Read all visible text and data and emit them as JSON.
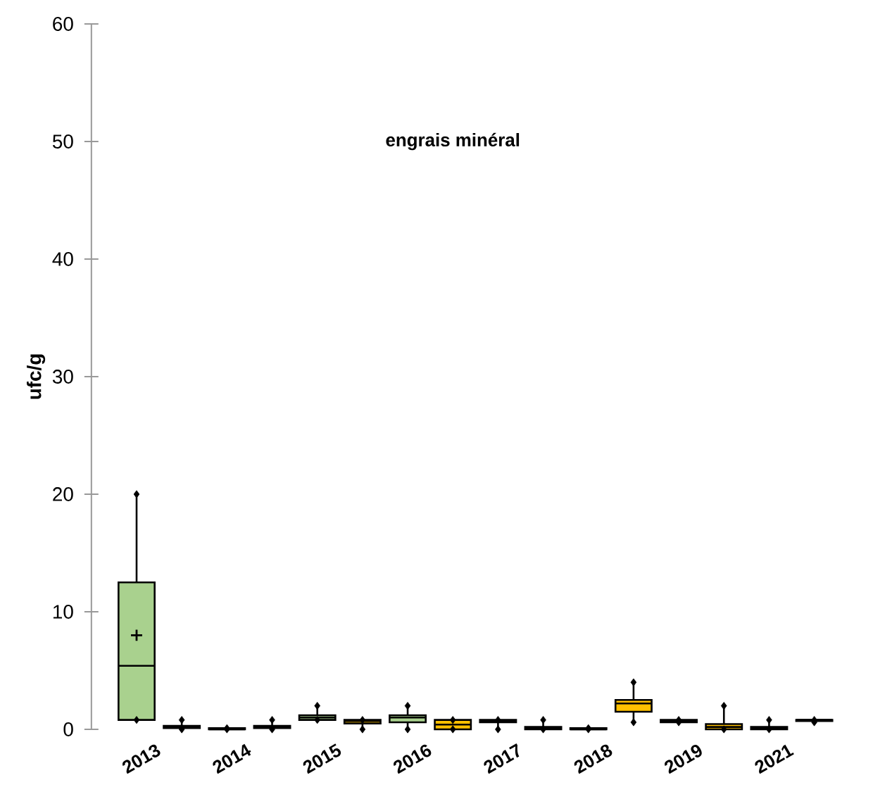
{
  "chart_data": {
    "type": "box",
    "title": "engrais minéral",
    "ylabel": "ufc/g",
    "categories": [
      "2013",
      null,
      "2014",
      null,
      "2015",
      null,
      "2016",
      null,
      "2017",
      null,
      "2018",
      null,
      "2019",
      null,
      "2021",
      null
    ],
    "colors": [
      "#a9d18e",
      "#ffc000",
      "#a9d18e",
      "#ffc000",
      "#a9d18e",
      "#ffc000",
      "#a9d18e",
      "#ffc000",
      "#a9d18e",
      "#ffc000",
      "#a9d18e",
      "#ffc000",
      "#a9d18e",
      "#ffc000",
      "#a9d18e",
      "#ffc000"
    ],
    "boxes": [
      {
        "low": 0.8,
        "q1": 0.8,
        "median": 5.4,
        "q3": 12.5,
        "high": 20,
        "mean": 8,
        "outliers": [
          0.8,
          20
        ]
      },
      {
        "low": 0,
        "q1": 0.1,
        "median": 0.2,
        "q3": 0.3,
        "high": 0.8,
        "outliers": [
          0,
          0.8
        ]
      },
      {
        "low": 0,
        "q1": 0,
        "median": 0,
        "q3": 0.1,
        "high": 0.1,
        "outliers": [
          0,
          0.1
        ]
      },
      {
        "low": 0,
        "q1": 0.1,
        "median": 0.2,
        "q3": 0.3,
        "high": 0.8,
        "outliers": [
          0,
          0.8
        ]
      },
      {
        "low": 0.8,
        "q1": 0.8,
        "median": 1,
        "q3": 1.2,
        "high": 2,
        "outliers": [
          0.8,
          2
        ]
      },
      {
        "low": 0,
        "q1": 0.5,
        "median": 0.7,
        "q3": 0.8,
        "high": 0.8,
        "outliers": [
          0,
          0.8
        ]
      },
      {
        "low": 0,
        "q1": 0.6,
        "median": 1,
        "q3": 1.2,
        "high": 2,
        "outliers": [
          0,
          2
        ]
      },
      {
        "low": 0,
        "q1": 0,
        "median": 0.4,
        "q3": 0.8,
        "high": 0.8,
        "outliers": [
          0,
          0.8
        ]
      },
      {
        "low": 0,
        "q1": 0.6,
        "median": 0.7,
        "q3": 0.8,
        "high": 0.8,
        "outliers": [
          0,
          0.8
        ]
      },
      {
        "low": 0,
        "q1": 0,
        "median": 0.1,
        "q3": 0.2,
        "high": 0.8,
        "outliers": [
          0,
          0.8
        ]
      },
      {
        "low": 0,
        "q1": 0,
        "median": 0,
        "q3": 0.1,
        "high": 0.1,
        "outliers": [
          0,
          0.1
        ]
      },
      {
        "low": 0.6,
        "q1": 1.5,
        "median": 2.2,
        "q3": 2.5,
        "high": 4,
        "outliers": [
          0.6,
          4
        ]
      },
      {
        "low": 0.6,
        "q1": 0.6,
        "median": 0.7,
        "q3": 0.8,
        "high": 0.8,
        "outliers": [
          0.6,
          0.8
        ]
      },
      {
        "low": 0,
        "q1": 0,
        "median": 0.2,
        "q3": 0.45,
        "high": 2,
        "outliers": [
          0,
          2
        ]
      },
      {
        "low": 0,
        "q1": 0,
        "median": 0.1,
        "q3": 0.2,
        "high": 0.8,
        "outliers": [
          0,
          0.8
        ]
      },
      {
        "low": 0.6,
        "q1": 0.7,
        "median": 0.8,
        "q3": 0.8,
        "high": 0.8,
        "outliers": [
          0.6,
          0.8
        ]
      }
    ],
    "ylim": [
      0,
      60
    ],
    "yticks": [
      0,
      10,
      20,
      30,
      40,
      50,
      60
    ]
  }
}
